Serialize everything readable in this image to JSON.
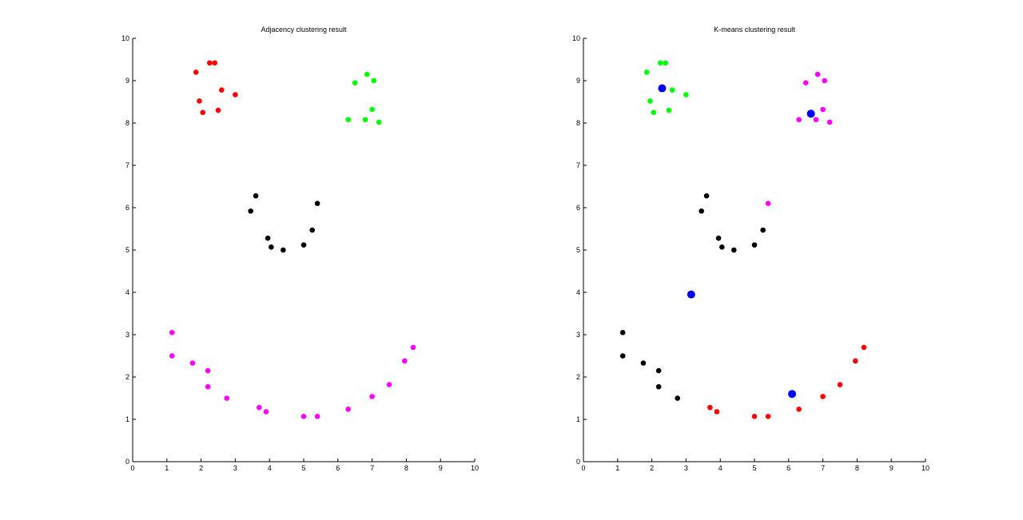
{
  "chart_data": [
    {
      "type": "scatter",
      "title": "Adjacency clustering result",
      "xlim": [
        0,
        10
      ],
      "ylim": [
        0,
        10
      ],
      "xticks": [
        "0",
        "1",
        "2",
        "3",
        "4",
        "5",
        "6",
        "7",
        "8",
        "9",
        "10"
      ],
      "yticks": [
        "0",
        "1",
        "2",
        "3",
        "4",
        "5",
        "6",
        "7",
        "8",
        "9",
        "10"
      ],
      "grid": false,
      "series": [
        {
          "color": "#ff0000",
          "marker_size": "small",
          "points": [
            [
              1.85,
              9.2
            ],
            [
              2.25,
              9.42
            ],
            [
              2.4,
              9.42
            ],
            [
              1.95,
              8.52
            ],
            [
              2.6,
              8.78
            ],
            [
              3.0,
              8.67
            ],
            [
              2.05,
              8.25
            ],
            [
              2.5,
              8.3
            ]
          ]
        },
        {
          "color": "#00ff00",
          "marker_size": "small",
          "points": [
            [
              6.5,
              8.95
            ],
            [
              6.85,
              9.15
            ],
            [
              7.05,
              9.0
            ],
            [
              7.0,
              8.32
            ],
            [
              6.3,
              8.08
            ],
            [
              6.8,
              8.08
            ],
            [
              7.2,
              8.02
            ]
          ]
        },
        {
          "color": "#000000",
          "marker_size": "small",
          "points": [
            [
              3.6,
              6.28
            ],
            [
              3.45,
              5.92
            ],
            [
              5.4,
              6.1
            ],
            [
              5.25,
              5.47
            ],
            [
              3.95,
              5.28
            ],
            [
              4.05,
              5.07
            ],
            [
              4.4,
              5.0
            ],
            [
              5.0,
              5.12
            ]
          ]
        },
        {
          "color": "#ff00ff",
          "marker_size": "small",
          "points": [
            [
              1.15,
              3.05
            ],
            [
              1.15,
              2.5
            ],
            [
              1.75,
              2.33
            ],
            [
              2.2,
              2.15
            ],
            [
              2.2,
              1.77
            ],
            [
              2.75,
              1.5
            ],
            [
              3.7,
              1.28
            ],
            [
              3.9,
              1.18
            ],
            [
              5.0,
              1.07
            ],
            [
              5.4,
              1.07
            ],
            [
              6.3,
              1.24
            ],
            [
              7.0,
              1.54
            ],
            [
              7.5,
              1.82
            ],
            [
              7.95,
              2.38
            ],
            [
              8.2,
              2.7
            ]
          ]
        }
      ]
    },
    {
      "type": "scatter",
      "title": "K-means clustering result",
      "xlim": [
        0,
        10
      ],
      "ylim": [
        0,
        10
      ],
      "xticks": [
        "0",
        "1",
        "2",
        "3",
        "4",
        "5",
        "6",
        "7",
        "8",
        "9",
        "10"
      ],
      "yticks": [
        "0",
        "1",
        "2",
        "3",
        "4",
        "5",
        "6",
        "7",
        "8",
        "9",
        "10"
      ],
      "grid": false,
      "series": [
        {
          "color": "#00ff00",
          "marker_size": "small",
          "points": [
            [
              1.85,
              9.2
            ],
            [
              2.25,
              9.42
            ],
            [
              2.4,
              9.42
            ],
            [
              1.95,
              8.52
            ],
            [
              2.6,
              8.78
            ],
            [
              3.0,
              8.67
            ],
            [
              2.05,
              8.25
            ],
            [
              2.5,
              8.3
            ]
          ]
        },
        {
          "color": "#ff00ff",
          "marker_size": "small",
          "points": [
            [
              6.5,
              8.95
            ],
            [
              6.85,
              9.15
            ],
            [
              7.05,
              9.0
            ],
            [
              7.0,
              8.32
            ],
            [
              6.3,
              8.08
            ],
            [
              6.8,
              8.08
            ],
            [
              7.2,
              8.02
            ],
            [
              5.4,
              6.1
            ]
          ]
        },
        {
          "color": "#000000",
          "marker_size": "small",
          "points": [
            [
              3.6,
              6.28
            ],
            [
              3.45,
              5.92
            ],
            [
              5.25,
              5.47
            ],
            [
              3.95,
              5.28
            ],
            [
              4.05,
              5.07
            ],
            [
              4.4,
              5.0
            ],
            [
              5.0,
              5.12
            ],
            [
              1.15,
              3.05
            ],
            [
              1.15,
              2.5
            ],
            [
              1.75,
              2.33
            ],
            [
              2.2,
              2.15
            ],
            [
              2.2,
              1.77
            ],
            [
              2.75,
              1.5
            ]
          ]
        },
        {
          "color": "#ff0000",
          "marker_size": "small",
          "points": [
            [
              3.7,
              1.28
            ],
            [
              3.9,
              1.18
            ],
            [
              5.0,
              1.07
            ],
            [
              5.4,
              1.07
            ],
            [
              6.3,
              1.24
            ],
            [
              7.0,
              1.54
            ],
            [
              7.5,
              1.82
            ],
            [
              7.95,
              2.38
            ],
            [
              8.2,
              2.7
            ]
          ]
        },
        {
          "color": "#0000ff",
          "marker_size": "large",
          "points": [
            [
              2.3,
              8.82
            ],
            [
              6.65,
              8.22
            ],
            [
              3.15,
              3.95
            ],
            [
              6.1,
              1.6
            ]
          ]
        }
      ]
    }
  ]
}
